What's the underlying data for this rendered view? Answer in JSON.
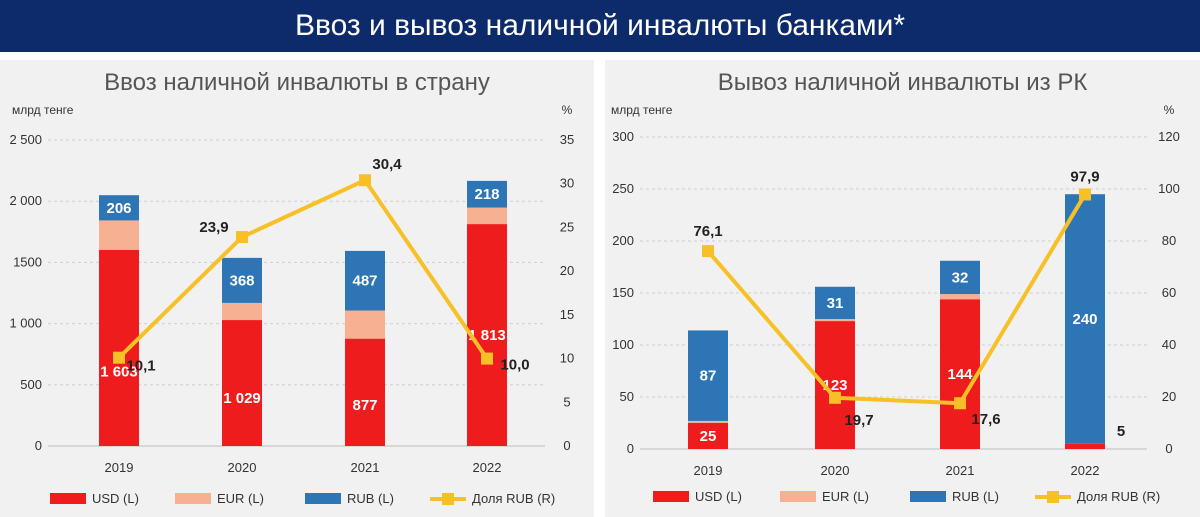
{
  "page_title": "Ввоз и вывоз наличной инвалюты банками*",
  "colors": {
    "usd": "#ee1c1c",
    "eur": "#f7b092",
    "rub": "#2e75b6",
    "share": "#f6c026",
    "banner": "#0d2a6b"
  },
  "chart_data": [
    {
      "type": "bar",
      "stacked": true,
      "title": "Ввоз наличной инвалюты в страну",
      "ylabel_left": "млрд тенге",
      "ylabel_right": "%",
      "categories": [
        "2019",
        "2020",
        "2021",
        "2022"
      ],
      "ylim_left": [
        0,
        2500
      ],
      "yticks_left": [
        "0",
        "500",
        "1 000",
        "1500",
        "2 000",
        "2 500"
      ],
      "yticks_left_values": [
        0,
        500,
        1000,
        1500,
        2000,
        2500
      ],
      "ylim_right": [
        0,
        35
      ],
      "yticks_right": [
        "0",
        "5",
        "10",
        "15",
        "20",
        "25",
        "30",
        "35"
      ],
      "yticks_right_values": [
        0,
        5,
        10,
        15,
        20,
        25,
        30,
        35
      ],
      "series": [
        {
          "name": "USD (L)",
          "values": [
            1603,
            1029,
            877,
            1813
          ],
          "labels": [
            "1 603",
            "1 029",
            "877",
            "1 813"
          ]
        },
        {
          "name": "EUR (L)",
          "values": [
            240,
            140,
            230,
            135
          ],
          "labels": [
            "",
            "",
            "",
            ""
          ]
        },
        {
          "name": "RUB (L)",
          "values": [
            206,
            368,
            487,
            218
          ],
          "labels": [
            "206",
            "368",
            "487",
            "218"
          ]
        },
        {
          "name": "Доля RUB (R)",
          "type": "line",
          "axis": "right",
          "values": [
            10.1,
            23.9,
            30.4,
            10.0
          ],
          "labels": [
            "10,1",
            "23,9",
            "30,4",
            "10,0"
          ]
        }
      ],
      "legend": "bottom",
      "grid": true
    },
    {
      "type": "bar",
      "stacked": true,
      "title": "Вывоз наличной инвалюты из РК",
      "ylabel_left": "млрд тенге",
      "ylabel_right": "%",
      "categories": [
        "2019",
        "2020",
        "2021",
        "2022"
      ],
      "ylim_left": [
        0,
        300
      ],
      "yticks_left": [
        "0",
        "50",
        "100",
        "150",
        "200",
        "250",
        "300"
      ],
      "yticks_left_values": [
        0,
        50,
        100,
        150,
        200,
        250,
        300
      ],
      "ylim_right": [
        0,
        120
      ],
      "yticks_right": [
        "0",
        "20",
        "40",
        "60",
        "80",
        "100",
        "120"
      ],
      "yticks_right_values": [
        0,
        20,
        40,
        60,
        80,
        100,
        120
      ],
      "series": [
        {
          "name": "USD (L)",
          "values": [
            25,
            123,
            144,
            5
          ],
          "labels": [
            "25",
            "123",
            "144",
            "5"
          ]
        },
        {
          "name": "EUR (L)",
          "values": [
            2,
            2,
            5,
            0
          ],
          "labels": [
            "",
            "",
            "",
            ""
          ]
        },
        {
          "name": "RUB (L)",
          "values": [
            87,
            31,
            32,
            240
          ],
          "labels": [
            "87",
            "31",
            "32",
            "240"
          ]
        },
        {
          "name": "Доля RUB (R)",
          "type": "line",
          "axis": "right",
          "values": [
            76.1,
            19.7,
            17.6,
            97.9
          ],
          "labels": [
            "76,1",
            "19,7",
            "17,6",
            "97,9"
          ]
        }
      ],
      "legend": "bottom",
      "grid": true
    }
  ]
}
